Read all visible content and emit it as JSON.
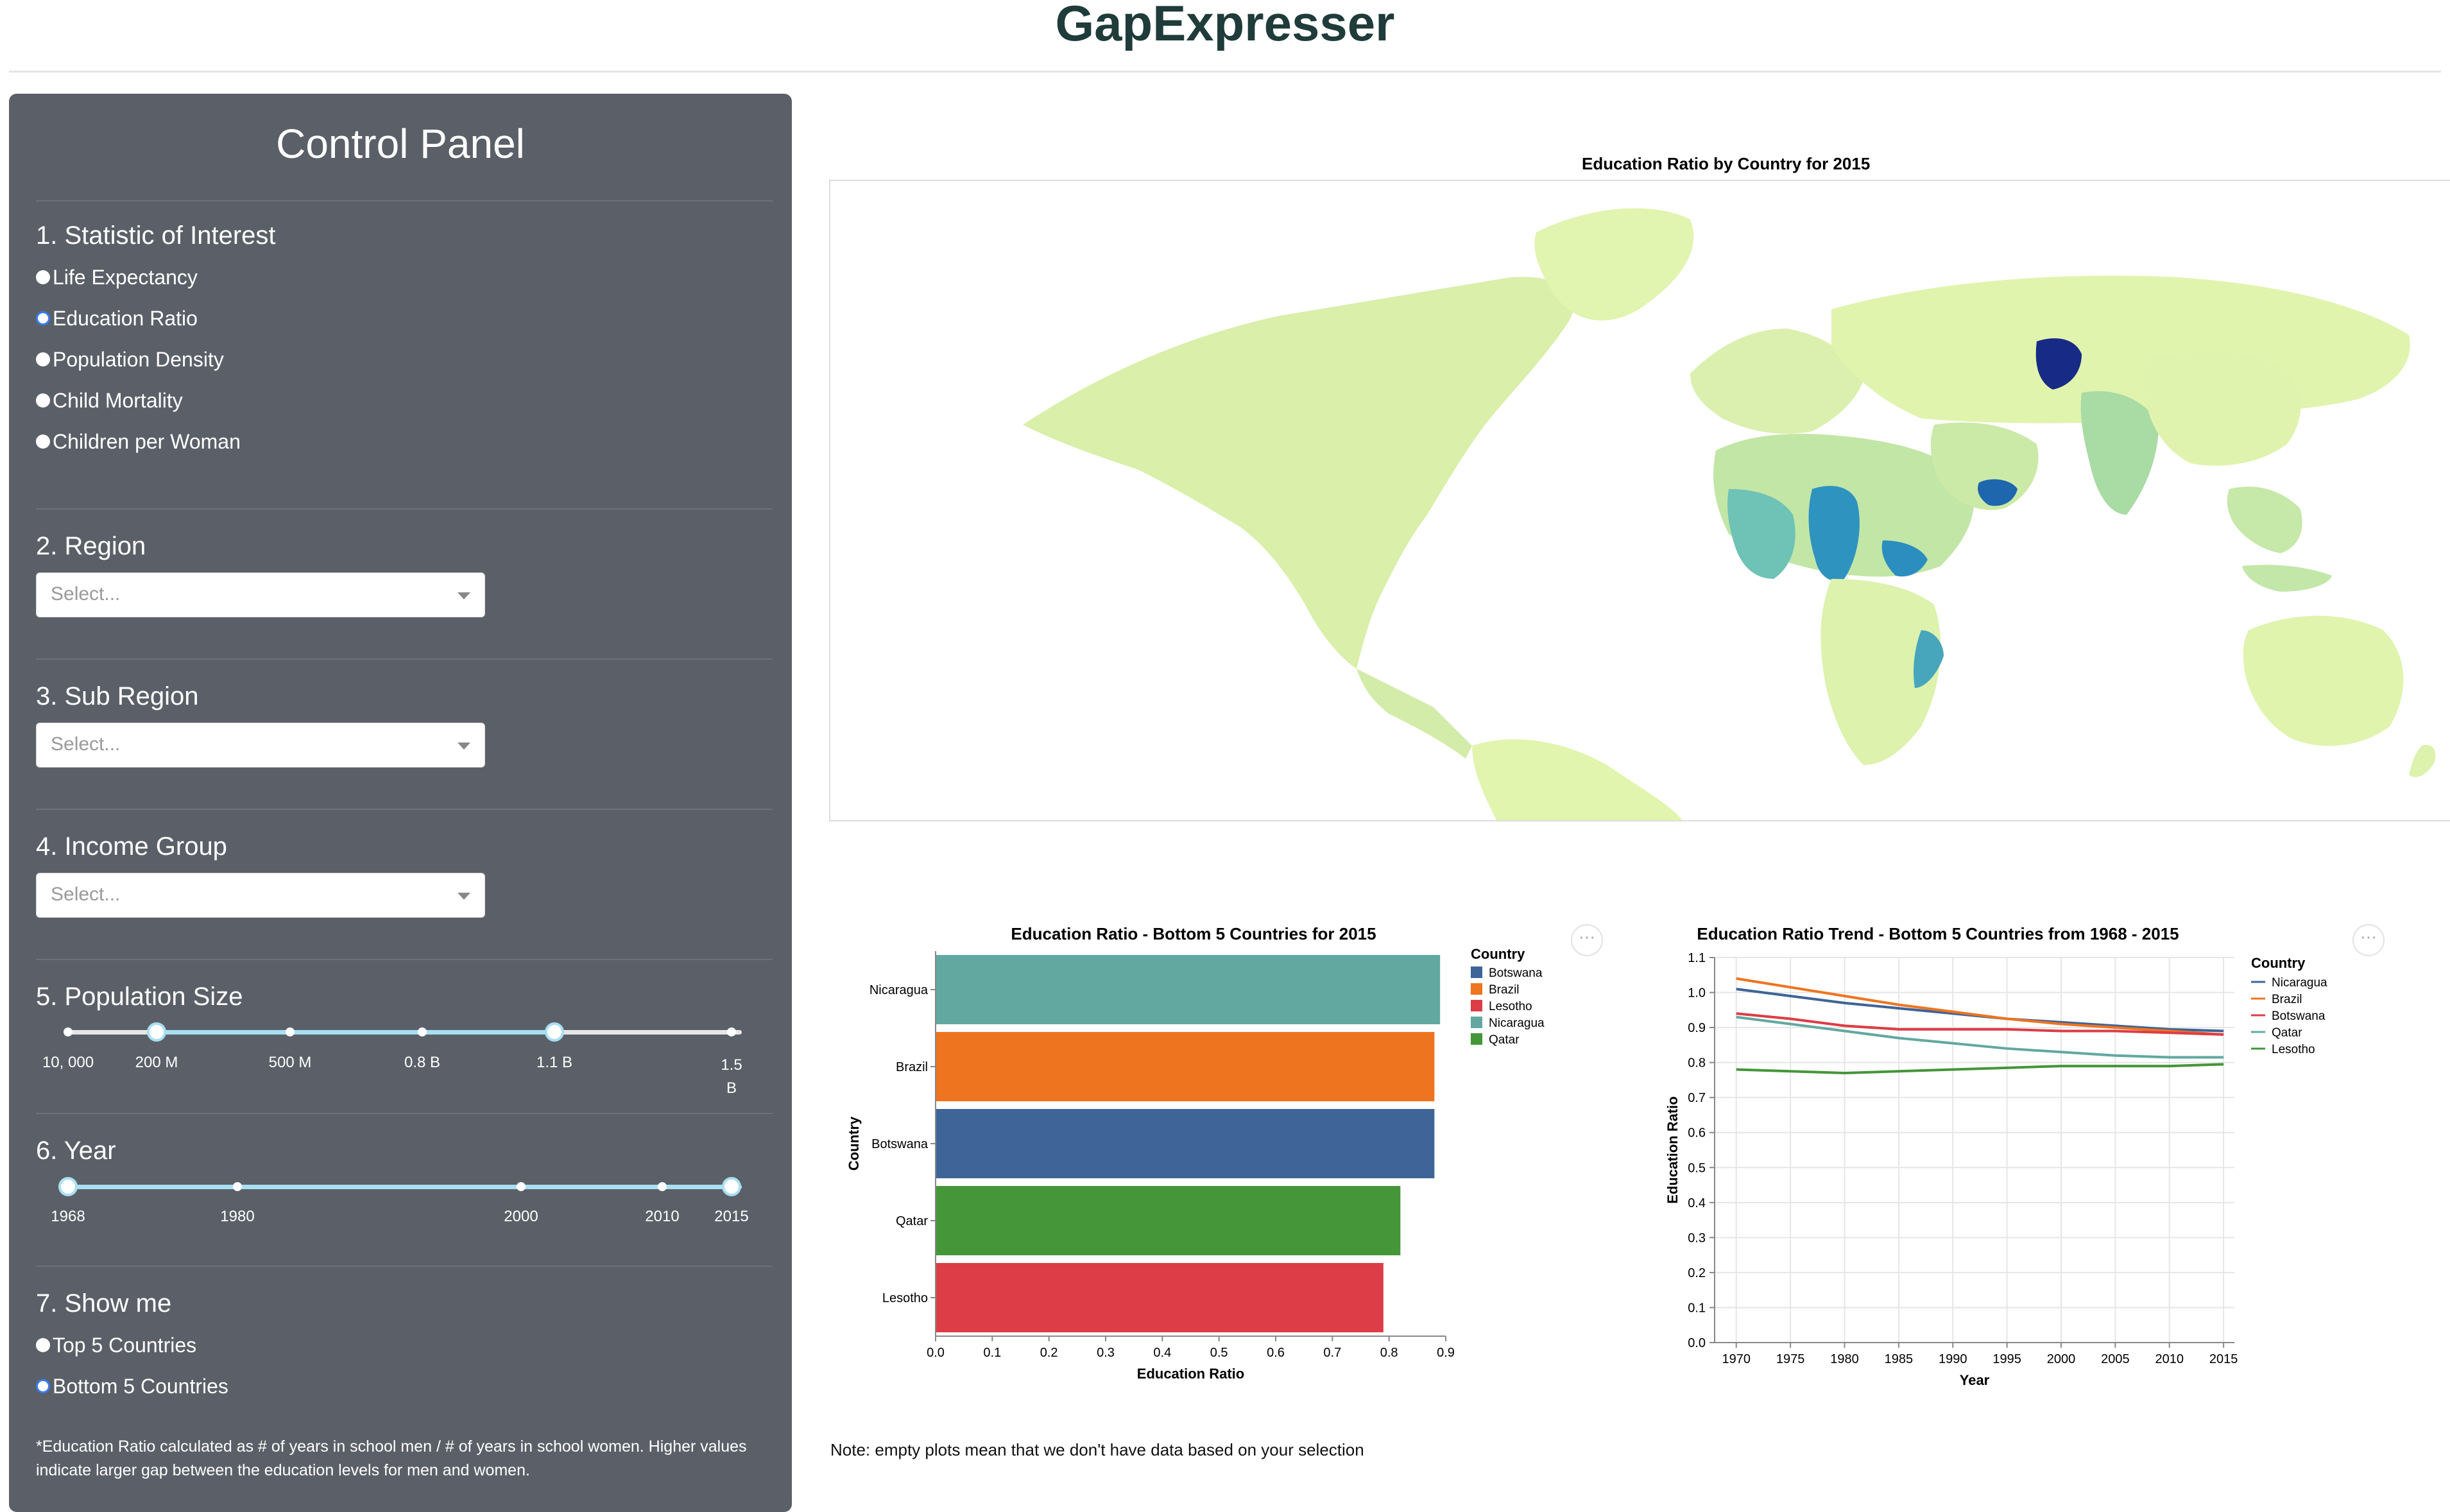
{
  "app": {
    "title": "GapExpresser"
  },
  "control_panel": {
    "title": "Control Panel",
    "statistic": {
      "heading": "1. Statistic of Interest",
      "options": [
        "Life Expectancy",
        "Education Ratio",
        "Population Density",
        "Child Mortality",
        "Children per Woman"
      ],
      "selected": "Education Ratio"
    },
    "region": {
      "heading": "2. Region",
      "placeholder": "Select..."
    },
    "sub_region": {
      "heading": "3. Sub Region",
      "placeholder": "Select..."
    },
    "income_group": {
      "heading": "4. Income Group",
      "placeholder": "Select..."
    },
    "population": {
      "heading": "5. Population Size",
      "ticks": [
        "10, 000",
        "200 M",
        "500 M",
        "0.8 B",
        "1.1 B",
        "1.5 B"
      ],
      "selected_range": [
        "200 M",
        "1.1 B"
      ]
    },
    "year": {
      "heading": "6. Year",
      "ticks": [
        "1968",
        "1980",
        "2000",
        "2010",
        "2015"
      ],
      "selected_range": [
        "1968",
        "2015"
      ]
    },
    "show_me": {
      "heading": "7. Show me",
      "options": [
        "Top 5 Countries",
        "Bottom 5 Countries"
      ],
      "selected": "Bottom 5 Countries"
    },
    "footnote": "*Education Ratio calculated as # of years in school men / # of years in school women. Higher values indicate larger gap between the education levels for men and women."
  },
  "map": {
    "title": "Education Ratio by Country for 2015"
  },
  "bar_chart": {
    "title": "Education Ratio - Bottom 5 Countries for 2015",
    "legend_title": "Country",
    "actions_icon": "ellipsis-icon"
  },
  "line_chart": {
    "title": "Education Ratio Trend - Bottom 5 Countries from 1968 - 2015",
    "legend_title": "Country",
    "actions_icon": "ellipsis-icon"
  },
  "note": "Note: empty plots mean that we don't have data based on your selection",
  "chart_data": [
    {
      "type": "bar",
      "title": "Education Ratio - Bottom 5 Countries for 2015",
      "xlabel": "Education Ratio",
      "ylabel": "Country",
      "xlim": [
        0,
        0.9
      ],
      "x_ticks": [
        "0.0",
        "0.1",
        "0.2",
        "0.3",
        "0.4",
        "0.5",
        "0.6",
        "0.7",
        "0.8",
        "0.9"
      ],
      "categories": [
        "Nicaragua",
        "Brazil",
        "Botswana",
        "Qatar",
        "Lesotho"
      ],
      "values": [
        0.89,
        0.88,
        0.88,
        0.82,
        0.79
      ],
      "colors": [
        "#62a8a0",
        "#ee7420",
        "#3e6498",
        "#449638",
        "#dc3d46"
      ],
      "legend": [
        {
          "name": "Botswana",
          "color": "#3e6498"
        },
        {
          "name": "Brazil",
          "color": "#ee7420"
        },
        {
          "name": "Lesotho",
          "color": "#dc3d46"
        },
        {
          "name": "Nicaragua",
          "color": "#62a8a0"
        },
        {
          "name": "Qatar",
          "color": "#449638"
        }
      ],
      "legend_position": "right",
      "grid": false
    },
    {
      "type": "line",
      "title": "Education Ratio Trend - Bottom 5 Countries from 1968 - 2015",
      "xlabel": "Year",
      "ylabel": "Education Ratio",
      "xlim": [
        1968,
        2016
      ],
      "ylim": [
        0,
        1.1
      ],
      "x_ticks": [
        1970,
        1975,
        1980,
        1985,
        1990,
        1995,
        2000,
        2005,
        2010,
        2015
      ],
      "y_ticks": [
        "0.0",
        "0.1",
        "0.2",
        "0.3",
        "0.4",
        "0.5",
        "0.6",
        "0.7",
        "0.8",
        "0.9",
        "1.0",
        "1.1"
      ],
      "grid": true,
      "legend_position": "right",
      "series": [
        {
          "name": "Nicaragua",
          "color": "#3e6498",
          "x": [
            1970,
            1975,
            1980,
            1985,
            1990,
            1995,
            2000,
            2005,
            2010,
            2015
          ],
          "y": [
            1.01,
            0.99,
            0.97,
            0.955,
            0.94,
            0.925,
            0.915,
            0.905,
            0.895,
            0.89
          ]
        },
        {
          "name": "Brazil",
          "color": "#ee7420",
          "x": [
            1970,
            1975,
            1980,
            1985,
            1990,
            1995,
            2000,
            2005,
            2010,
            2015
          ],
          "y": [
            1.04,
            1.015,
            0.99,
            0.965,
            0.945,
            0.925,
            0.91,
            0.9,
            0.89,
            0.88
          ]
        },
        {
          "name": "Botswana",
          "color": "#dc3d46",
          "x": [
            1970,
            1975,
            1980,
            1985,
            1990,
            1995,
            2000,
            2005,
            2010,
            2015
          ],
          "y": [
            0.94,
            0.925,
            0.905,
            0.895,
            0.895,
            0.895,
            0.89,
            0.89,
            0.885,
            0.88
          ]
        },
        {
          "name": "Qatar",
          "color": "#62a8a0",
          "x": [
            1970,
            1975,
            1980,
            1985,
            1990,
            1995,
            2000,
            2005,
            2010,
            2015
          ],
          "y": [
            0.93,
            0.91,
            0.89,
            0.87,
            0.855,
            0.84,
            0.83,
            0.82,
            0.815,
            0.815
          ]
        },
        {
          "name": "Lesotho",
          "color": "#449638",
          "x": [
            1970,
            1975,
            1980,
            1985,
            1990,
            1995,
            2000,
            2005,
            2010,
            2015
          ],
          "y": [
            0.78,
            0.775,
            0.77,
            0.775,
            0.78,
            0.785,
            0.79,
            0.79,
            0.79,
            0.795
          ]
        }
      ]
    }
  ]
}
